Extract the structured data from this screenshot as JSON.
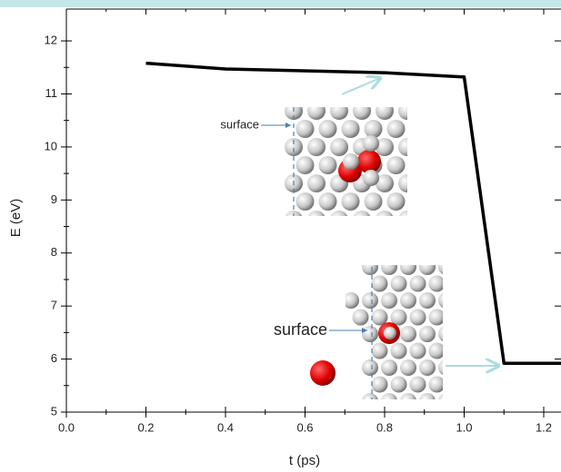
{
  "chart_data": {
    "type": "line",
    "x_label": "t (ps)",
    "y_label": "E (eV)",
    "x": [
      0.2,
      0.4,
      0.8,
      1.0,
      1.1,
      1.25
    ],
    "series": [
      {
        "color": "#000000",
        "values": [
          11.58,
          11.47,
          11.4,
          11.32,
          5.92,
          5.92
        ]
      }
    ],
    "xlim": [
      0,
      1.25
    ],
    "ylim": [
      5,
      12.6
    ],
    "xticks": [
      {
        "value": 0,
        "label": "0.0"
      },
      0.2,
      0.4,
      0.6,
      0.8,
      {
        "value": 1,
        "label": "1.0"
      },
      1.2
    ],
    "yticks": [
      5,
      6,
      7,
      8,
      9,
      10,
      11,
      12
    ],
    "annotations": [
      "surface",
      "surface"
    ]
  }
}
